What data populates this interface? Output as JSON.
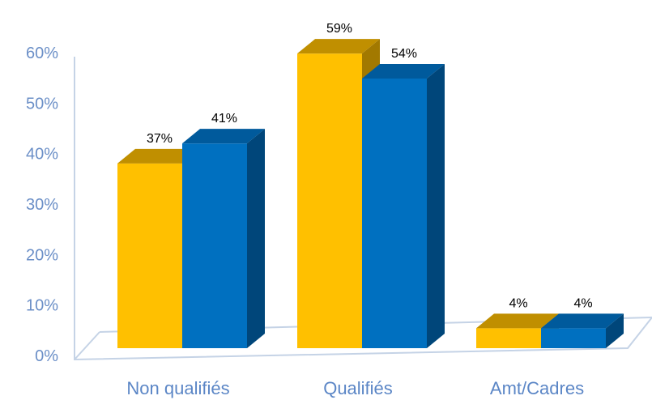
{
  "chart_data": {
    "type": "bar",
    "categories": [
      "Non qualifiés",
      "Qualifiés",
      "Amt/Cadres"
    ],
    "series": [
      {
        "values": [
          37,
          59,
          4
        ],
        "labels": [
          "37%",
          "59%",
          "4%"
        ]
      },
      {
        "values": [
          41,
          54,
          4
        ],
        "labels": [
          "41%",
          "54%",
          "4%"
        ]
      }
    ],
    "yticks": [
      "0%",
      "10%",
      "20%",
      "30%",
      "40%",
      "50%",
      "60%"
    ],
    "ylim": [
      0,
      60
    ],
    "grid": false,
    "legend": "none",
    "style": "3d-column"
  },
  "colors": {
    "series": [
      {
        "front": "#ffc000",
        "top": "#c08f00",
        "side": "#a27900"
      },
      {
        "front": "#0070c0",
        "top": "#005a9c",
        "side": "#00467a"
      }
    ],
    "axis": "#c5d3e6",
    "tick_text": "#6b8fc7",
    "category_text": "#5b86c6"
  }
}
